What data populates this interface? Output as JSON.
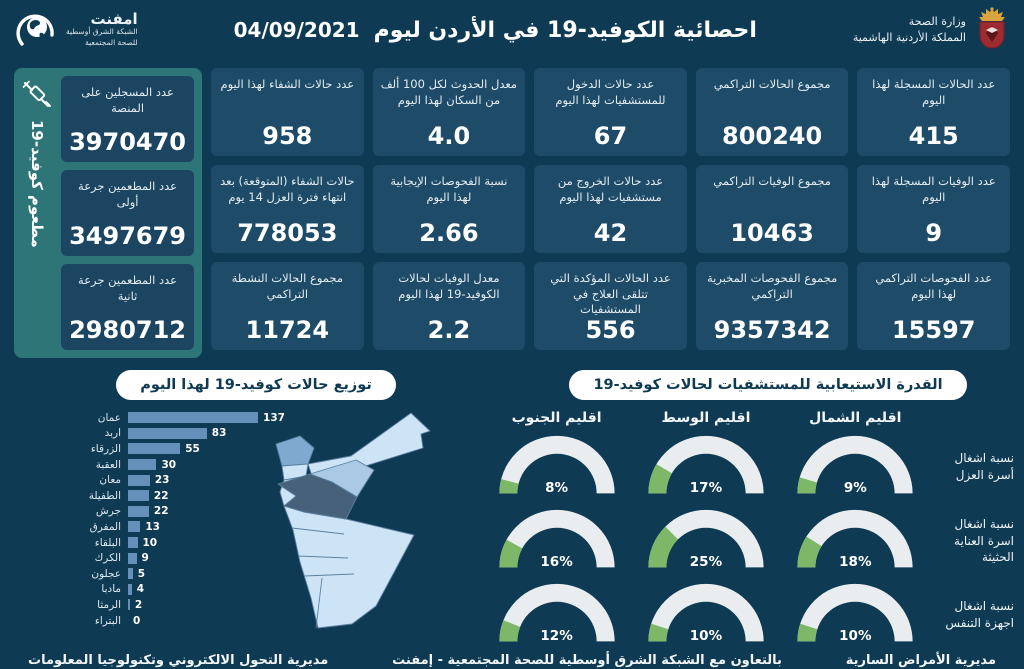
{
  "header": {
    "title": "احصائية الكوفيد-19 في الأردن ليوم",
    "date": "04/09/2021",
    "ministry": {
      "line1": "وزارة الصحة",
      "line2": "المملكة الأردنية الهاشمية"
    },
    "emphnet": {
      "name": "امفنت",
      "line1": "الشبكة الشرق أوسطية",
      "line2": "للصحة المجتمعية"
    }
  },
  "stats_columns": [
    {
      "cards": [
        {
          "label": "عدد الحالات المسجلة لهذا اليوم",
          "value": "415"
        },
        {
          "label": "عدد الوفيات المسجلة لهذا اليوم",
          "value": "9"
        },
        {
          "label": "عدد الفحوصات التراكمي لهذا اليوم",
          "value": "15597"
        }
      ]
    },
    {
      "cards": [
        {
          "label": "مجموع الحالات التراكمي",
          "value": "800240"
        },
        {
          "label": "مجموع الوفيات التراكمي",
          "value": "10463"
        },
        {
          "label": "مجموع الفحوصات المخبرية التراكمي",
          "value": "9357342"
        }
      ]
    },
    {
      "cards": [
        {
          "label": "عدد حالات الدخول للمستشفيات لهذا اليوم",
          "value": "67"
        },
        {
          "label": "عدد حالات الخروج من مستشفيات لهذا اليوم",
          "value": "42"
        },
        {
          "label": "عدد الحالات المؤكدة التي تتلقى العلاج في المستشفيات",
          "value": "556"
        }
      ]
    },
    {
      "cards": [
        {
          "label": "معدل الحدوث لكل 100 ألف من السكان لهذا اليوم",
          "value": "4.0"
        },
        {
          "label": "نسبة الفحوصات الإيجابية لهذا اليوم",
          "value": "2.66"
        },
        {
          "label": "معدل الوفيات لحالات الكوفيد-19 لهذا اليوم",
          "value": "2.2"
        }
      ]
    },
    {
      "cards": [
        {
          "label": "عدد حالات الشفاء لهذا اليوم",
          "value": "958"
        },
        {
          "label": "حالات الشفاء (المتوقعة) بعد انتهاء فترة العزل 14 يوم",
          "value": "778053"
        },
        {
          "label": "مجموع الحالات النشطة التراكمي",
          "value": "11724"
        }
      ]
    }
  ],
  "vaccination": {
    "side_label": "مطعوم كوفيد-19",
    "cards": [
      {
        "label": "عدد المسجلين على المنصة",
        "value": "3970470"
      },
      {
        "label": "عدد المطعمين جرعة أولى",
        "value": "3497679"
      },
      {
        "label": "عدد المطعمين جرعة ثانية",
        "value": "2980712"
      }
    ]
  },
  "chart_data": [
    {
      "type": "bar",
      "title": "توزيع حالات كوفيد-19 لهذا اليوم",
      "orientation": "horizontal",
      "categories": [
        "عمان",
        "اربد",
        "الزرقاء",
        "العقبة",
        "معان",
        "الطفيلة",
        "جرش",
        "المفرق",
        "البلقاء",
        "الكرك",
        "عجلون",
        "مادبا",
        "الرمثا",
        "البتراء"
      ],
      "values": [
        137,
        83,
        55,
        30,
        23,
        22,
        22,
        13,
        10,
        9,
        5,
        4,
        2,
        0
      ],
      "xlim": [
        0,
        137
      ],
      "bar_color": "#6590ba"
    },
    {
      "type": "gauge-grid",
      "title": "القدرة الاستيعابية للمستشفيات لحالات كوفيد-19",
      "columns": [
        "اقليم الشمال",
        "اقليم الوسط",
        "اقليم الجنوب"
      ],
      "rows": [
        {
          "label": "نسبة اشغال أسرة العزل",
          "values": [
            9,
            17,
            8
          ]
        },
        {
          "label": "نسبة اشغال اسرة العناية الحثيثة",
          "values": [
            18,
            25,
            16
          ]
        },
        {
          "label": "نسبة اشغال اجهزة التنفس",
          "values": [
            10,
            10,
            12
          ]
        }
      ],
      "unit": "%",
      "track_color": "#e9edf0",
      "fill_color": "#7cb868"
    }
  ],
  "footer": {
    "right": "مديرية الأمراض السارية",
    "center": "بالتعاون مع الشبكة الشرق أوسطية للصحة المجتمعية - إمفنت",
    "left": "مديرية التحول الالكتروني وتكنولوجيا المعلومات"
  },
  "colors": {
    "background": "#0e3a54",
    "card": "#1d4b68",
    "sidebar": "#2e7577",
    "banner_bg": "#ffffff",
    "banner_text": "#0e3a54",
    "bar": "#6590ba",
    "gauge_track": "#e9edf0",
    "gauge_fill": "#7cb868",
    "map_light": "#cde4f6",
    "map_medium": "#a9c9e5",
    "map_irbid": "#7fa9cf",
    "map_amman_dark": "#47617a"
  }
}
